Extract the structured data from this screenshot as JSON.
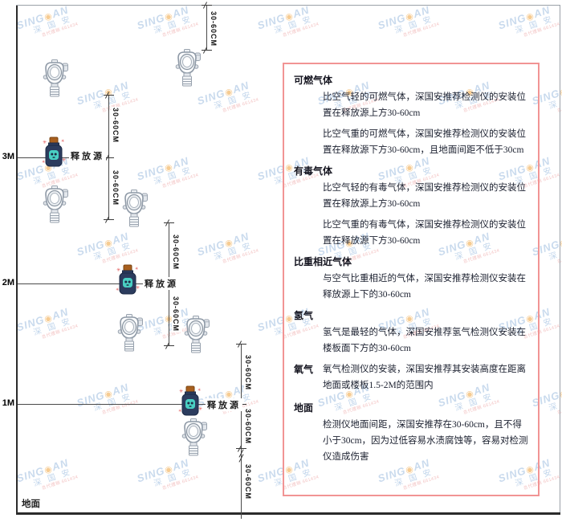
{
  "watermark": {
    "brand_left": "SING",
    "dot": "◉",
    "brand_right": "AN",
    "cn": "深 国 安",
    "sub": "总代理销 661434",
    "color_blue": "#9dbde0",
    "color_red": "#e98f8f"
  },
  "diagram": {
    "axis_labels": [
      "3M",
      "2M",
      "1M"
    ],
    "ground_label": "地面",
    "release_source_label": "释放源",
    "dimension_label": "30-60CM",
    "detector_icon": "gas-detector",
    "line_color": "#4a4a4a"
  },
  "panel": {
    "border_color": "#f19494",
    "sections": [
      {
        "heading": "可燃气体",
        "inline": false,
        "paragraphs": [
          "比空气轻的可燃气体，深国安推荐检测仪的安装位置在释放源上方30-60cm",
          "比空气重的可燃气体，深国安推荐检测仪的安装位置在释放源下方30-60cm，且地面间距不低于30cm"
        ]
      },
      {
        "heading": "有毒气体",
        "inline": false,
        "paragraphs": [
          "比空气轻的有毒气体，深国安推荐检测仪的安装位置在释放源上方30-60cm",
          "比空气重的有毒气体，深国安推荐检测仪的安装位置在释放源下方30-60cm"
        ]
      },
      {
        "heading": "比重相近气体",
        "inline": false,
        "paragraphs": [
          "与空气比重相近的气体，深国安推荐检测仪安装在释放源上下的30-60cm"
        ]
      },
      {
        "heading": "氢气",
        "inline": false,
        "paragraphs": [
          "氢气是最轻的气体，深国安推荐氢气检测仪安装在楼板面下方的30-60cm"
        ]
      },
      {
        "heading": "氧气",
        "inline": true,
        "paragraphs": [
          "氧气检测仪的安装，深国安推荐其安装高度在距离地面或楼板1.5-2M的范围内"
        ]
      },
      {
        "heading": "地面",
        "inline": false,
        "paragraphs": [
          "检测仪地面间距，深国安推荐在30-60cm，且不得小于30cm，因为过低容易水渍腐蚀等，容易对检测仪造成伤害"
        ]
      }
    ]
  }
}
